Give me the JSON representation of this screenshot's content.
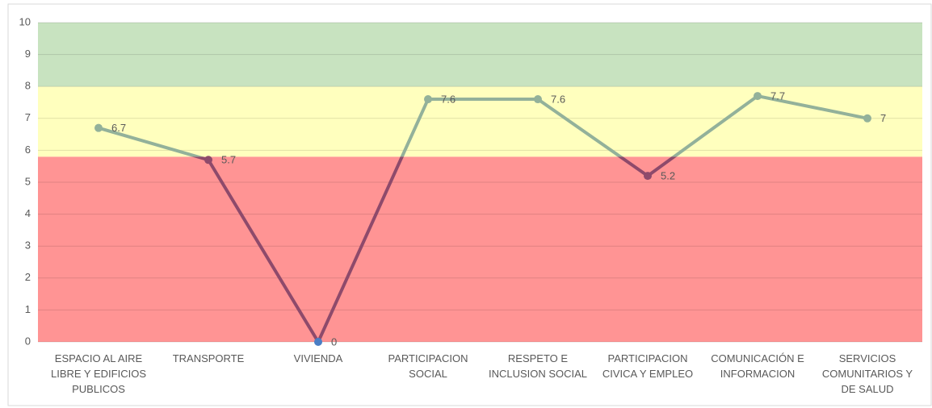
{
  "chart_data": {
    "type": "line",
    "categories": [
      "ESPACIO AL AIRE LIBRE Y EDIFICIOS PUBLICOS",
      "TRANSPORTE",
      "VIVIENDA",
      "PARTICIPACION SOCIAL",
      "RESPETO E INCLUSION SOCIAL",
      "PARTICIPACION CIVICA Y EMPLEO",
      "COMUNICACIÓN E INFORMACION",
      "SERVICIOS COMUNITARIOS Y DE SALUD"
    ],
    "values": [
      6.7,
      5.7,
      0,
      7.6,
      7.6,
      5.2,
      7.7,
      7
    ],
    "ylim": [
      0,
      10
    ],
    "yticks": [
      0,
      1,
      2,
      3,
      4,
      5,
      6,
      7,
      8,
      9,
      10
    ],
    "grid": true,
    "bands": [
      {
        "from": 0,
        "to": 5.8,
        "color": "#ff9494"
      },
      {
        "from": 5.8,
        "to": 8,
        "color": "#ffffbe"
      },
      {
        "from": 8,
        "to": 10,
        "color": "#c8e3c0"
      }
    ],
    "line_colors": {
      "above": "#93b19a",
      "below": "#8e4a6b"
    },
    "point_colors": [
      "#93b19a",
      "#8e4a6b",
      "#4a7ec4",
      "#93b19a",
      "#93b19a",
      "#8e4a6b",
      "#93b19a",
      "#93b19a"
    ],
    "label_colors": {
      "above": "#9a9660",
      "below": "#8b2e3a"
    }
  }
}
